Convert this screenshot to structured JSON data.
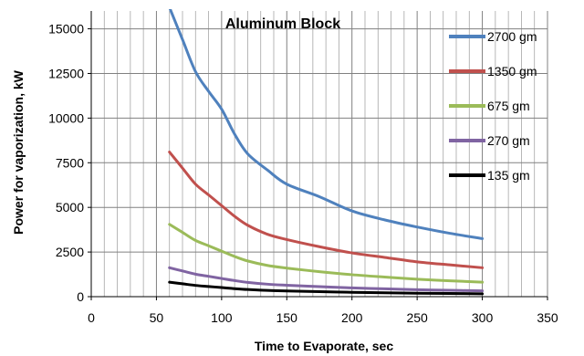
{
  "chart_data": {
    "type": "line",
    "title": "Aluminum Block",
    "xlabel": "Time to Evaporate, sec",
    "ylabel": "Power for vaporization, kW",
    "xlim": [
      0,
      350
    ],
    "ylim": [
      0,
      16000
    ],
    "x_ticks": [
      "0",
      "50",
      "100",
      "150",
      "200",
      "250",
      "300",
      "350"
    ],
    "y_ticks": [
      "0",
      "2500",
      "5000",
      "7500",
      "10000",
      "12500",
      "15000"
    ],
    "grid": true,
    "legend_position": "right",
    "x": [
      60,
      70,
      80,
      90,
      100,
      110,
      120,
      135,
      150,
      175,
      200,
      225,
      250,
      275,
      300
    ],
    "series": [
      {
        "name": "2700 gm",
        "color": "#4F81BD",
        "values": [
          16200,
          14400,
          12600,
          11500,
          10500,
          9100,
          8000,
          7100,
          6300,
          5600,
          4800,
          4300,
          3900,
          3550,
          3250
        ]
      },
      {
        "name": "1350 gm",
        "color": "#C0504D",
        "values": [
          8100,
          7200,
          6300,
          5700,
          5100,
          4500,
          4000,
          3500,
          3200,
          2800,
          2450,
          2200,
          1950,
          1780,
          1620
        ]
      },
      {
        "name": "675 gm",
        "color": "#9BBB59",
        "values": [
          4050,
          3600,
          3150,
          2850,
          2550,
          2250,
          2000,
          1750,
          1600,
          1400,
          1230,
          1100,
          980,
          890,
          810
        ]
      },
      {
        "name": "270 gm",
        "color": "#8064A2",
        "values": [
          1620,
          1440,
          1260,
          1140,
          1020,
          900,
          800,
          700,
          640,
          560,
          490,
          440,
          390,
          355,
          325
        ]
      },
      {
        "name": "135 gm",
        "color": "#000000",
        "values": [
          810,
          720,
          630,
          570,
          510,
          450,
          400,
          350,
          320,
          280,
          245,
          220,
          195,
          178,
          162
        ]
      }
    ]
  }
}
